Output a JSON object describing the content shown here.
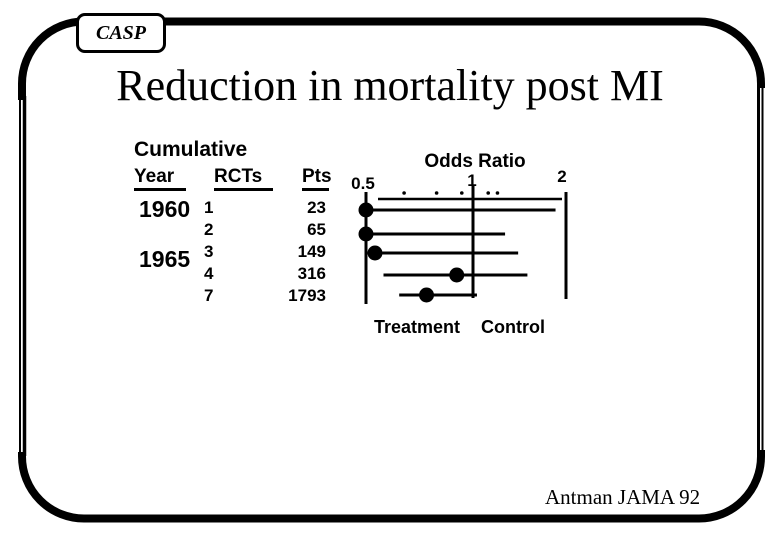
{
  "slide": {
    "badge_label": "CASP",
    "title": "Reduction in mortality post MI",
    "citation": "Antman JAMA 92"
  },
  "table": {
    "title_line": "Cumulative",
    "headers": {
      "year": "Year",
      "rcts": "RCTs",
      "pts": "Pts"
    },
    "rows": [
      {
        "year": "1960",
        "rcts": "1",
        "pts": "23"
      },
      {
        "year": "",
        "rcts": "2",
        "pts": "65"
      },
      {
        "year": "1965",
        "rcts": "3",
        "pts": "149"
      },
      {
        "year": "",
        "rcts": "4",
        "pts": "316"
      },
      {
        "year": "",
        "rcts": "7",
        "pts": "1793"
      }
    ]
  },
  "chart_data": {
    "type": "forest",
    "title": "Odds Ratio",
    "x_axis": {
      "scale": "log",
      "min": 0.5,
      "max": 2,
      "major_ticks": [
        {
          "value": 0.5,
          "label": "0.5"
        },
        {
          "value": 1,
          "label": "1"
        },
        {
          "value": 2,
          "label": "2"
        }
      ],
      "minor_tick_values": [
        0.64,
        0.79,
        0.93,
        1.12,
        1.2
      ]
    },
    "series": [
      {
        "year": "1960",
        "rcts": 1,
        "pts": 23,
        "or": 0.5,
        "ci_low": 0.5,
        "ci_high": 1.85
      },
      {
        "year": "",
        "rcts": 2,
        "pts": 65,
        "or": 0.5,
        "ci_low": 0.5,
        "ci_high": 1.27
      },
      {
        "year": "1965",
        "rcts": 3,
        "pts": 149,
        "or": 0.53,
        "ci_low": 0.53,
        "ci_high": 1.4
      },
      {
        "year": "",
        "rcts": 4,
        "pts": 316,
        "or": 0.9,
        "ci_low": 0.56,
        "ci_high": 1.5
      },
      {
        "year": "",
        "rcts": 7,
        "pts": 1793,
        "or": 0.74,
        "ci_low": 0.62,
        "ci_high": 1.03
      }
    ],
    "side_labels": {
      "left": "Treatment",
      "right": "Control"
    },
    "colors": {
      "ink": "#000000",
      "background": "#ffffff"
    }
  }
}
